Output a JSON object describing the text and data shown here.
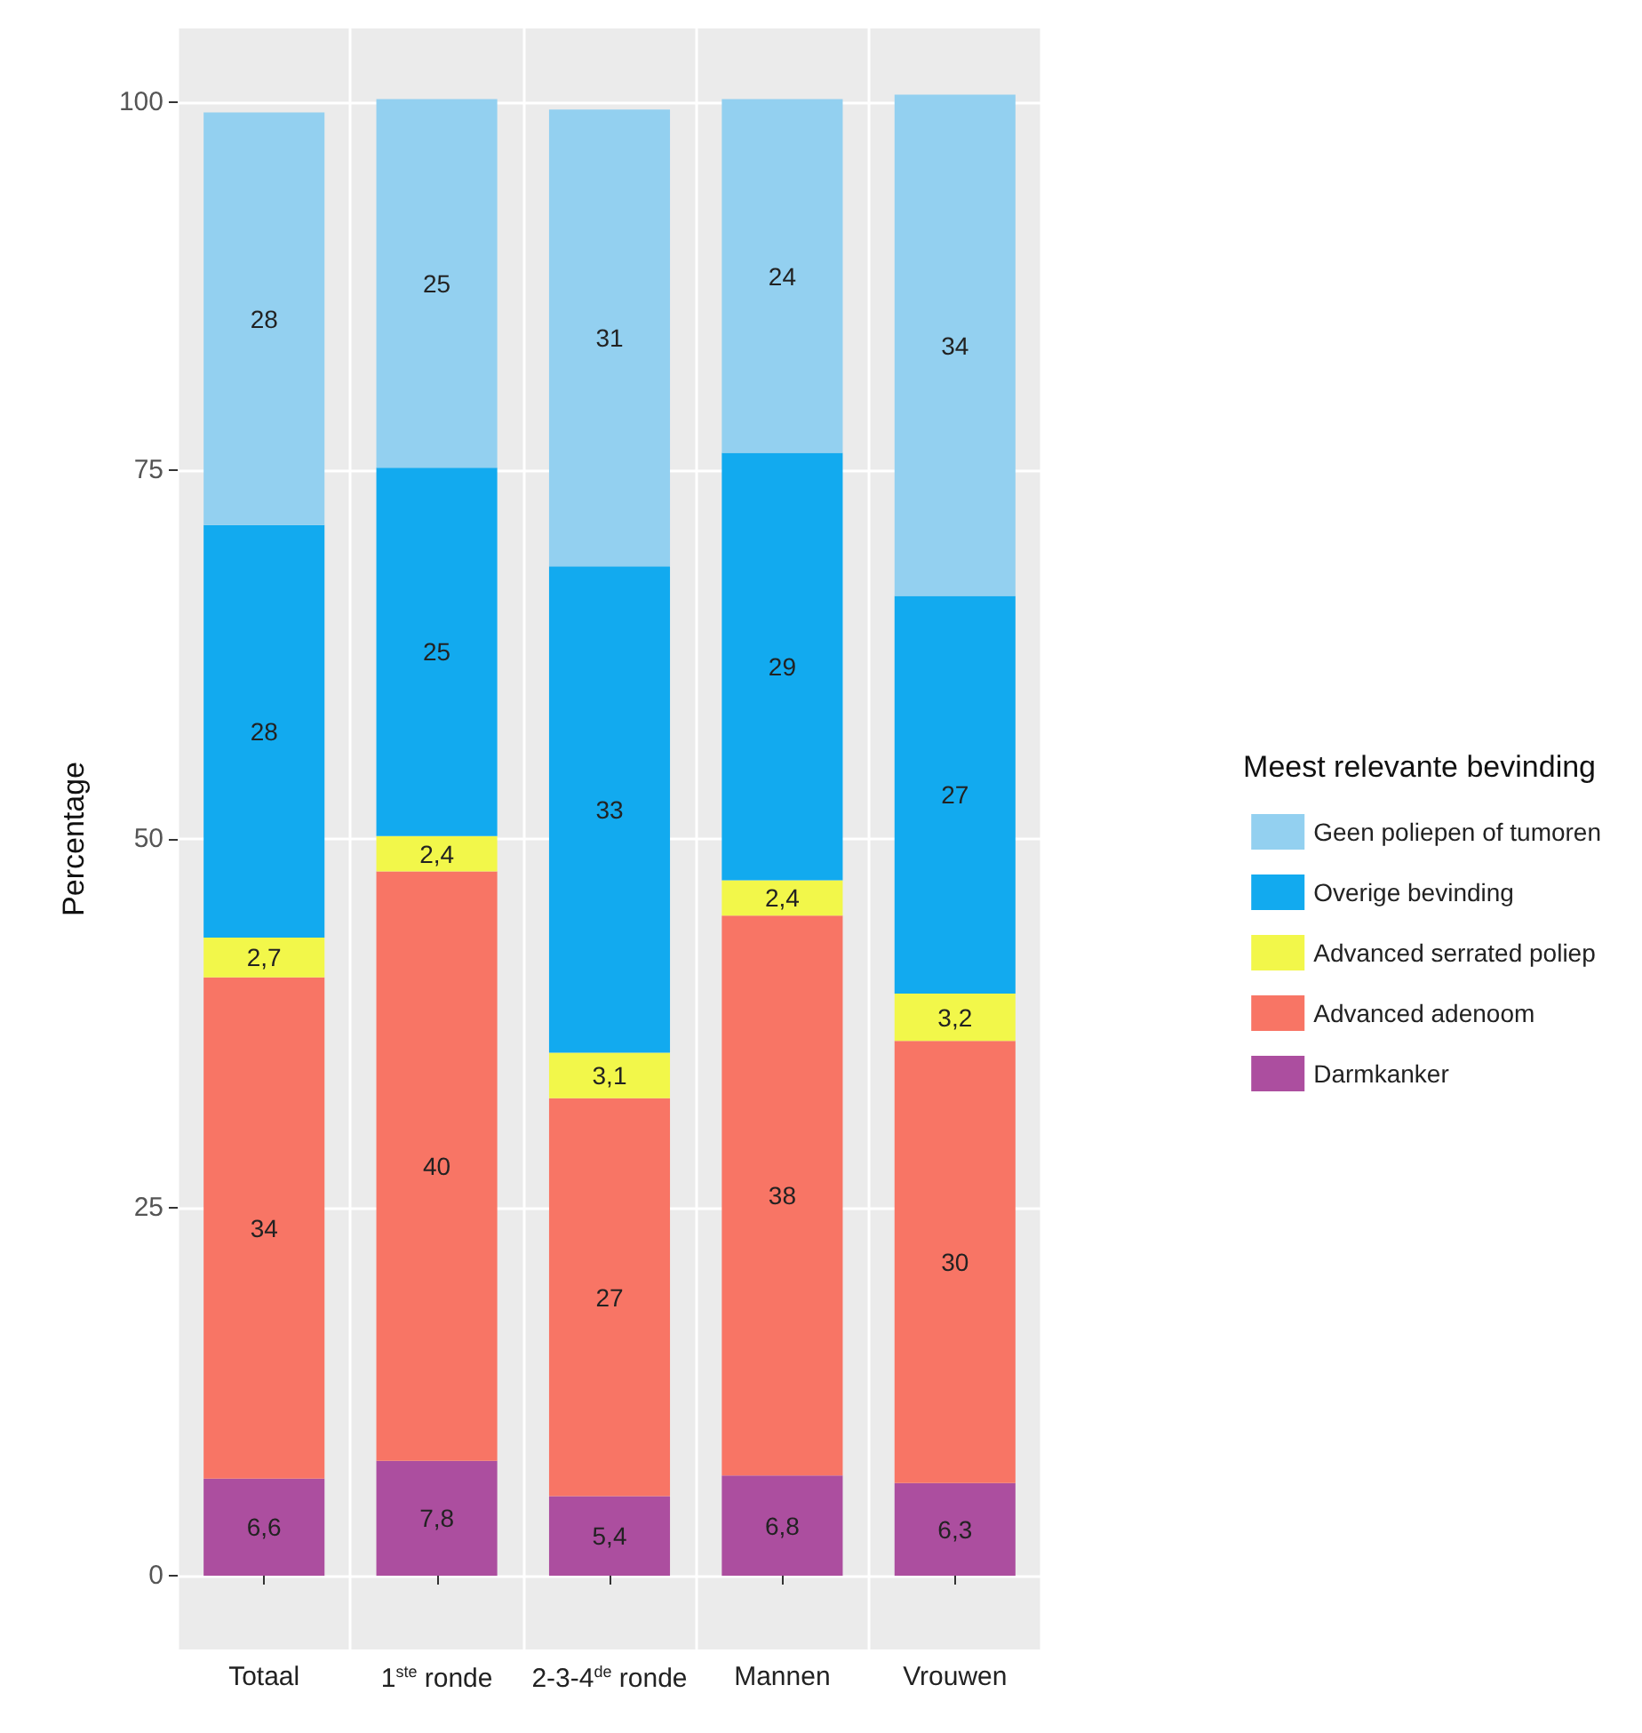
{
  "chart_data": {
    "type": "bar",
    "stacked": true,
    "ylabel": "Percentage",
    "legend_title": "Meest relevante bevinding",
    "legend": "right",
    "grid": true,
    "categories": [
      "Totaal",
      "1$^{ste}$ ronde",
      "2-3-4$^{de}$ ronde",
      "Mannen",
      "Vrouwen"
    ],
    "ylim": [
      -5,
      105
    ],
    "yticks": [
      0,
      25,
      50,
      75,
      100
    ],
    "series": [
      {
        "name": "Darmkanker",
        "color": "#ac4e9f",
        "values": [
          6.6,
          7.8,
          5.4,
          6.8,
          6.3
        ],
        "value_labels": [
          "6,6",
          "7,8",
          "5,4",
          "6,8",
          "6,3"
        ]
      },
      {
        "name": "Advanced adenoom",
        "color": "#f87565",
        "values": [
          34,
          40,
          27,
          38,
          30
        ],
        "value_labels": [
          "34",
          "40",
          "27",
          "38",
          "30"
        ]
      },
      {
        "name": "Advanced serrated poliep",
        "color": "#f2f74a",
        "values": [
          2.7,
          2.4,
          3.1,
          2.4,
          3.2
        ],
        "value_labels": [
          "2,7",
          "2,4",
          "3,1",
          "2,4",
          "3,2"
        ]
      },
      {
        "name": "Overige bevinding",
        "color": "#12aaef",
        "values": [
          28,
          25,
          33,
          29,
          27
        ],
        "value_labels": [
          "28",
          "25",
          "33",
          "29",
          "27"
        ]
      },
      {
        "name": "Geen poliepen of tumoren",
        "color": "#93d0f0",
        "values": [
          28,
          25,
          31,
          24,
          34
        ],
        "value_labels": [
          "28",
          "25",
          "31",
          "24",
          "34"
        ]
      }
    ]
  }
}
